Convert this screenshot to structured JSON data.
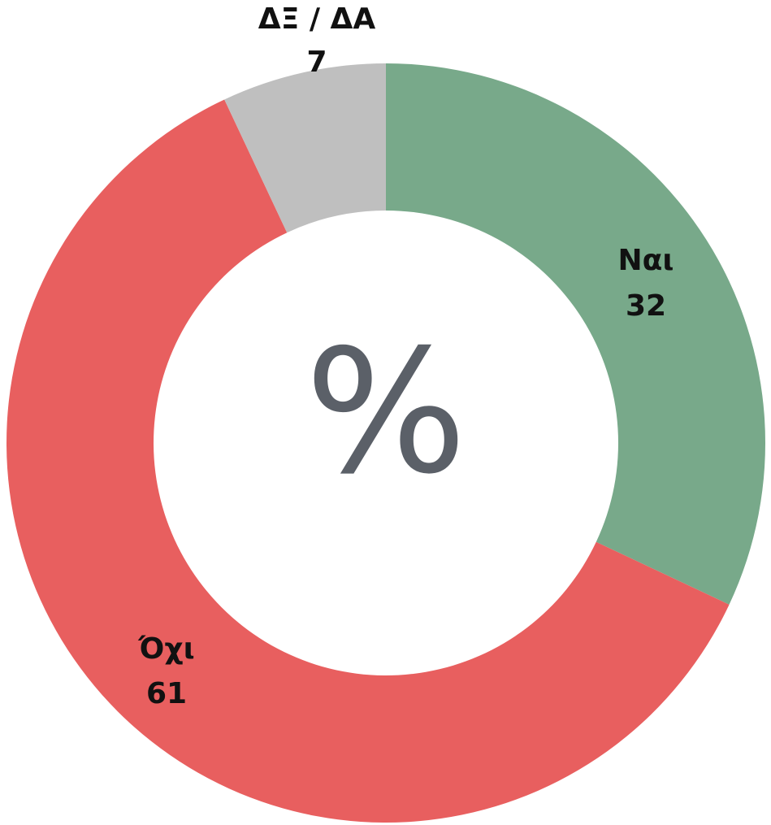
{
  "chart_data": {
    "type": "donut",
    "categories": [
      "Ναι",
      "Όχι",
      "ΔΞ / ΔΑ"
    ],
    "values": [
      32,
      61,
      7
    ],
    "colors": [
      "#78a98a",
      "#e85f5f",
      "#bfbfbf"
    ],
    "center_text": "%"
  }
}
